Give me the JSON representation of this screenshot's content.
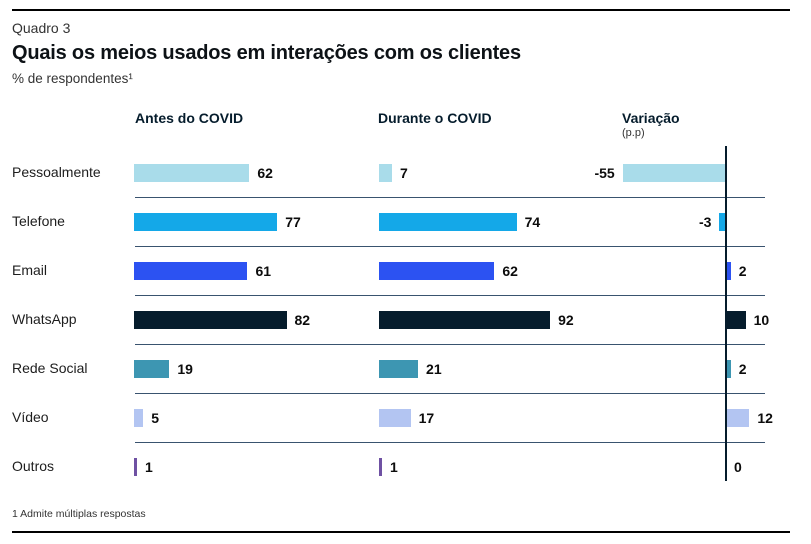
{
  "header": {
    "eyebrow": "Quadro 3",
    "title": "Quais os meios usados em interações com os clientes",
    "subtitle": "% de respondentes¹"
  },
  "columns": [
    {
      "label": "Antes do COVID",
      "sublabel": ""
    },
    {
      "label": "Durante o COVID",
      "sublabel": ""
    },
    {
      "label": "Variação",
      "sublabel": "(p.p)"
    }
  ],
  "footnote": "1 Admite múltiplas respostas",
  "colors": {
    "divider": "#39536F",
    "axis": "#051C2C",
    "top_rule": "#000000",
    "bottom_rule": "#000000"
  },
  "chart_data": {
    "type": "bar",
    "orientation": "horizontal",
    "title": "Quais os meios usados em interações com os clientes",
    "subtitle": "% de respondentes¹",
    "categories": [
      "Pessoalmente",
      "Telefone",
      "Email",
      "WhatsApp",
      "Rede Social",
      "Vídeo",
      "Outros"
    ],
    "series": [
      {
        "name": "Antes do COVID",
        "values": [
          62,
          77,
          61,
          82,
          19,
          5,
          1
        ]
      },
      {
        "name": "Durante o COVID",
        "values": [
          7,
          74,
          62,
          92,
          21,
          17,
          1
        ]
      },
      {
        "name": "Variação (p.p)",
        "values": [
          -55,
          -3,
          2,
          10,
          2,
          12,
          0
        ]
      }
    ],
    "bar_colors": [
      "#A9DCEA",
      "#14A8E8",
      "#2C52F2",
      "#051C2C",
      "#3D96B2",
      "#B3C5F2",
      "#6F51A3"
    ],
    "value_labels_shown": true,
    "axis_zero_line": true,
    "xlim_per_panel": [
      0,
      100
    ],
    "legend_position": "none",
    "grid": "row-dividers"
  }
}
